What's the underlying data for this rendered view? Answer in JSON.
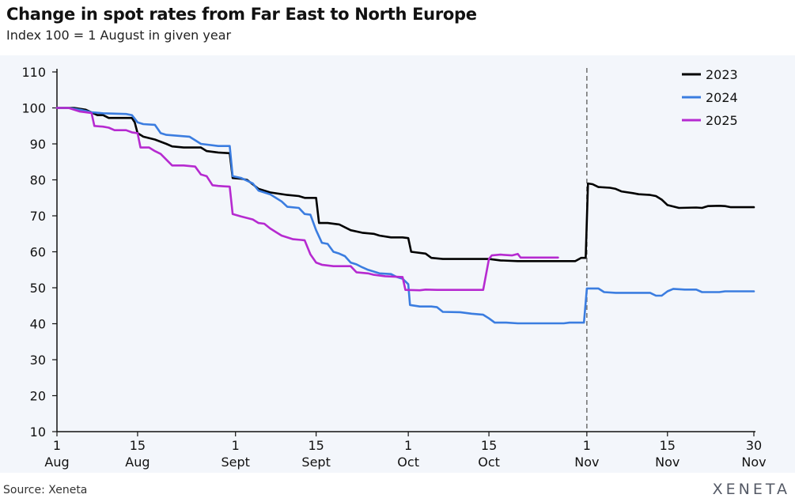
{
  "header": {
    "title": "Change in spot rates from Far East to North Europe",
    "subtitle": "Index 100 = 1 August in given year"
  },
  "footer": {
    "source": "Source: Xeneta",
    "brand": "XENETA"
  },
  "colors": {
    "2023": "#000000",
    "2024": "#3b7de0",
    "2025": "#b62ad0",
    "reference_line": "#777777",
    "plot_background": "#f3f6fb"
  },
  "chart_data": {
    "type": "line",
    "title": "Change in spot rates from Far East to North Europe",
    "subtitle": "Index 100 = 1 August in given year",
    "xlabel": "",
    "ylabel": "",
    "ylim": [
      10,
      110
    ],
    "yticks": [
      10,
      20,
      30,
      40,
      50,
      60,
      70,
      80,
      90,
      100,
      110
    ],
    "xlim": [
      0,
      121
    ],
    "xticks": [
      {
        "x": 0,
        "day": "1",
        "month": "Aug"
      },
      {
        "x": 14,
        "day": "15",
        "month": "Aug"
      },
      {
        "x": 31,
        "day": "1",
        "month": "Sept"
      },
      {
        "x": 45,
        "day": "15",
        "month": "Sept"
      },
      {
        "x": 61,
        "day": "1",
        "month": "Oct"
      },
      {
        "x": 75,
        "day": "15",
        "month": "Oct"
      },
      {
        "x": 92,
        "day": "1",
        "month": "Nov"
      },
      {
        "x": 106,
        "day": "15",
        "month": "Nov"
      },
      {
        "x": 121,
        "day": "30",
        "month": "Nov"
      }
    ],
    "reference_line_x": 92,
    "grid": false,
    "legend_position": "top-right",
    "series": [
      {
        "name": "2023",
        "points": [
          [
            0,
            100
          ],
          [
            3,
            100
          ],
          [
            5,
            99.5
          ],
          [
            7,
            98
          ],
          [
            8,
            98
          ],
          [
            9,
            97.2
          ],
          [
            13,
            97.2
          ],
          [
            13.5,
            96
          ],
          [
            14,
            93
          ],
          [
            15,
            92
          ],
          [
            17,
            91.2
          ],
          [
            19,
            90
          ],
          [
            20,
            89.3
          ],
          [
            22,
            89
          ],
          [
            25,
            89
          ],
          [
            26,
            88
          ],
          [
            28,
            87.6
          ],
          [
            30,
            87.4
          ],
          [
            30.5,
            80.5
          ],
          [
            32,
            80.3
          ],
          [
            33,
            80
          ],
          [
            35,
            77.5
          ],
          [
            37,
            76.5
          ],
          [
            40,
            75.8
          ],
          [
            42,
            75.5
          ],
          [
            43,
            75
          ],
          [
            45,
            75
          ],
          [
            45.5,
            68
          ],
          [
            47,
            68
          ],
          [
            49,
            67.6
          ],
          [
            51,
            66
          ],
          [
            53,
            65.3
          ],
          [
            55,
            65
          ],
          [
            56,
            64.5
          ],
          [
            58,
            64
          ],
          [
            60,
            64
          ],
          [
            61,
            63.8
          ],
          [
            61.5,
            60
          ],
          [
            64,
            59.5
          ],
          [
            65,
            58.3
          ],
          [
            67,
            58
          ],
          [
            75,
            58
          ],
          [
            77,
            57.6
          ],
          [
            80,
            57.4
          ],
          [
            90,
            57.4
          ],
          [
            91,
            58.3
          ],
          [
            91.8,
            58.3
          ],
          [
            92.2,
            79
          ],
          [
            93,
            78.8
          ],
          [
            94,
            78
          ],
          [
            96,
            77.8
          ],
          [
            97,
            77.5
          ],
          [
            98,
            76.8
          ],
          [
            100,
            76.3
          ],
          [
            101,
            76
          ],
          [
            103,
            75.8
          ],
          [
            104,
            75.5
          ],
          [
            105,
            74.5
          ],
          [
            106,
            73
          ],
          [
            108,
            72.2
          ],
          [
            111,
            72.3
          ],
          [
            112,
            72.2
          ],
          [
            113,
            72.7
          ],
          [
            115,
            72.8
          ],
          [
            116,
            72.7
          ],
          [
            117,
            72.4
          ],
          [
            121,
            72.4
          ]
        ]
      },
      {
        "name": "2024",
        "points": [
          [
            0,
            100
          ],
          [
            2,
            100
          ],
          [
            4,
            99.5
          ],
          [
            6,
            98.8
          ],
          [
            8,
            98.5
          ],
          [
            12,
            98.3
          ],
          [
            13,
            98
          ],
          [
            14,
            96
          ],
          [
            15,
            95.5
          ],
          [
            17,
            95.3
          ],
          [
            18,
            93
          ],
          [
            19,
            92.5
          ],
          [
            23,
            92
          ],
          [
            24,
            91
          ],
          [
            25,
            90
          ],
          [
            28,
            89.4
          ],
          [
            30,
            89.4
          ],
          [
            30.5,
            81
          ],
          [
            32,
            80.5
          ],
          [
            34,
            79
          ],
          [
            35,
            77
          ],
          [
            37,
            76
          ],
          [
            39,
            74
          ],
          [
            40,
            72.5
          ],
          [
            42,
            72.2
          ],
          [
            43,
            70.5
          ],
          [
            44,
            70.3
          ],
          [
            45,
            66
          ],
          [
            46,
            62.5
          ],
          [
            47,
            62.2
          ],
          [
            48,
            60
          ],
          [
            49,
            59.5
          ],
          [
            50,
            58.8
          ],
          [
            51,
            57
          ],
          [
            52,
            56.5
          ],
          [
            53,
            55.7
          ],
          [
            54,
            55
          ],
          [
            56,
            54
          ],
          [
            58,
            53.8
          ],
          [
            59,
            53
          ],
          [
            60,
            52.5
          ],
          [
            61,
            51
          ],
          [
            61.3,
            45.2
          ],
          [
            63,
            44.8
          ],
          [
            65,
            44.8
          ],
          [
            66,
            44.6
          ],
          [
            67,
            43.3
          ],
          [
            70,
            43.2
          ],
          [
            72,
            42.8
          ],
          [
            74,
            42.5
          ],
          [
            75,
            41.5
          ],
          [
            76,
            40.3
          ],
          [
            78,
            40.3
          ],
          [
            80,
            40.1
          ],
          [
            88,
            40.1
          ],
          [
            89,
            40.3
          ],
          [
            91.5,
            40.3
          ],
          [
            92,
            49.8
          ],
          [
            94,
            49.8
          ],
          [
            95,
            48.8
          ],
          [
            97,
            48.6
          ],
          [
            103,
            48.6
          ],
          [
            104,
            47.8
          ],
          [
            105,
            47.8
          ],
          [
            106,
            49
          ],
          [
            107,
            49.7
          ],
          [
            109,
            49.5
          ],
          [
            111,
            49.5
          ],
          [
            112,
            48.8
          ],
          [
            115,
            48.8
          ],
          [
            116,
            49
          ],
          [
            121,
            49
          ]
        ]
      },
      {
        "name": "2025",
        "points": [
          [
            0,
            100
          ],
          [
            2,
            100
          ],
          [
            4,
            99
          ],
          [
            6,
            98.6
          ],
          [
            6.5,
            95
          ],
          [
            8,
            94.8
          ],
          [
            9,
            94.5
          ],
          [
            10,
            93.8
          ],
          [
            12,
            93.8
          ],
          [
            13,
            93.2
          ],
          [
            14,
            93
          ],
          [
            14.5,
            89
          ],
          [
            16,
            89
          ],
          [
            17,
            88
          ],
          [
            18,
            87.2
          ],
          [
            20,
            84
          ],
          [
            22,
            84
          ],
          [
            24,
            83.7
          ],
          [
            25,
            81.5
          ],
          [
            26,
            81
          ],
          [
            27,
            78.5
          ],
          [
            28,
            78.3
          ],
          [
            29,
            78.2
          ],
          [
            30,
            78.1
          ],
          [
            30.5,
            70.5
          ],
          [
            32,
            69.8
          ],
          [
            34,
            69
          ],
          [
            35,
            68
          ],
          [
            36,
            67.8
          ],
          [
            37,
            66.5
          ],
          [
            38,
            65.5
          ],
          [
            39,
            64.5
          ],
          [
            41,
            63.5
          ],
          [
            43,
            63.2
          ],
          [
            44,
            59.3
          ],
          [
            45,
            57
          ],
          [
            46,
            56.4
          ],
          [
            48,
            56
          ],
          [
            51,
            56
          ],
          [
            52,
            54.3
          ],
          [
            54,
            54
          ],
          [
            55,
            53.6
          ],
          [
            57,
            53.2
          ],
          [
            60,
            53
          ],
          [
            60.5,
            49.4
          ],
          [
            63,
            49.3
          ],
          [
            64,
            49.5
          ],
          [
            66,
            49.4
          ],
          [
            73,
            49.4
          ],
          [
            74,
            49.4
          ],
          [
            75,
            58
          ],
          [
            75.5,
            59
          ],
          [
            77,
            59.2
          ],
          [
            79,
            59
          ],
          [
            80,
            59.4
          ],
          [
            80.5,
            58.4
          ],
          [
            87,
            58.4
          ]
        ]
      }
    ]
  }
}
